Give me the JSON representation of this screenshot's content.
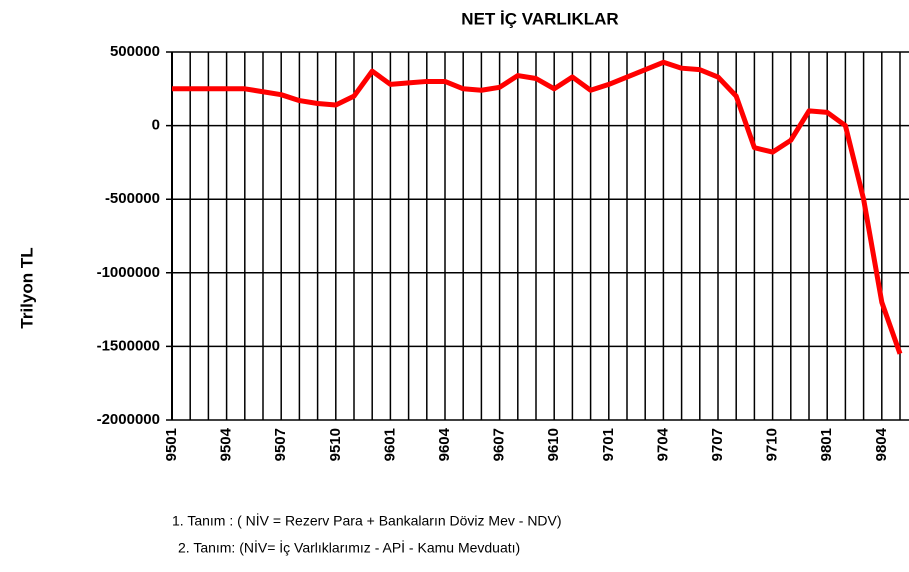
{
  "chart_data": {
    "type": "line",
    "title": "NET İÇ VARLIKLAR",
    "y_label": "Trilyon TL",
    "categories": [
      "9501",
      null,
      null,
      "9504",
      null,
      null,
      "9507",
      null,
      null,
      "9510",
      null,
      null,
      "9601",
      null,
      null,
      "9604",
      null,
      null,
      "9607",
      null,
      null,
      "9610",
      null,
      null,
      "9701",
      null,
      null,
      "9704",
      null,
      null,
      "9707",
      null,
      null,
      "9710",
      null,
      null,
      "9801",
      null,
      null,
      "9804",
      null
    ],
    "series": [
      {
        "name": "NİV",
        "color": "#ff0000",
        "values": [
          250000,
          250000,
          250000,
          250000,
          250000,
          230000,
          210000,
          170000,
          150000,
          140000,
          200000,
          370000,
          280000,
          290000,
          300000,
          300000,
          250000,
          240000,
          260000,
          340000,
          320000,
          250000,
          330000,
          240000,
          280000,
          330000,
          380000,
          430000,
          390000,
          380000,
          330000,
          200000,
          -150000,
          -180000,
          -100000,
          100000,
          90000,
          0,
          -500000,
          -1200000,
          -1550000
        ]
      }
    ],
    "ylim": [
      -2000000,
      500000
    ],
    "yticks": [
      500000,
      0,
      -500000,
      -1000000,
      -1500000,
      -2000000
    ],
    "grid": true,
    "notes": [
      "1. Tanım : ( NİV = Rezerv Para + Bankaların Döviz Mev - NDV)",
      "2. Tanım: (NİV= İç Varlıklarımız - APİ - Kamu Mevduatı)"
    ]
  }
}
